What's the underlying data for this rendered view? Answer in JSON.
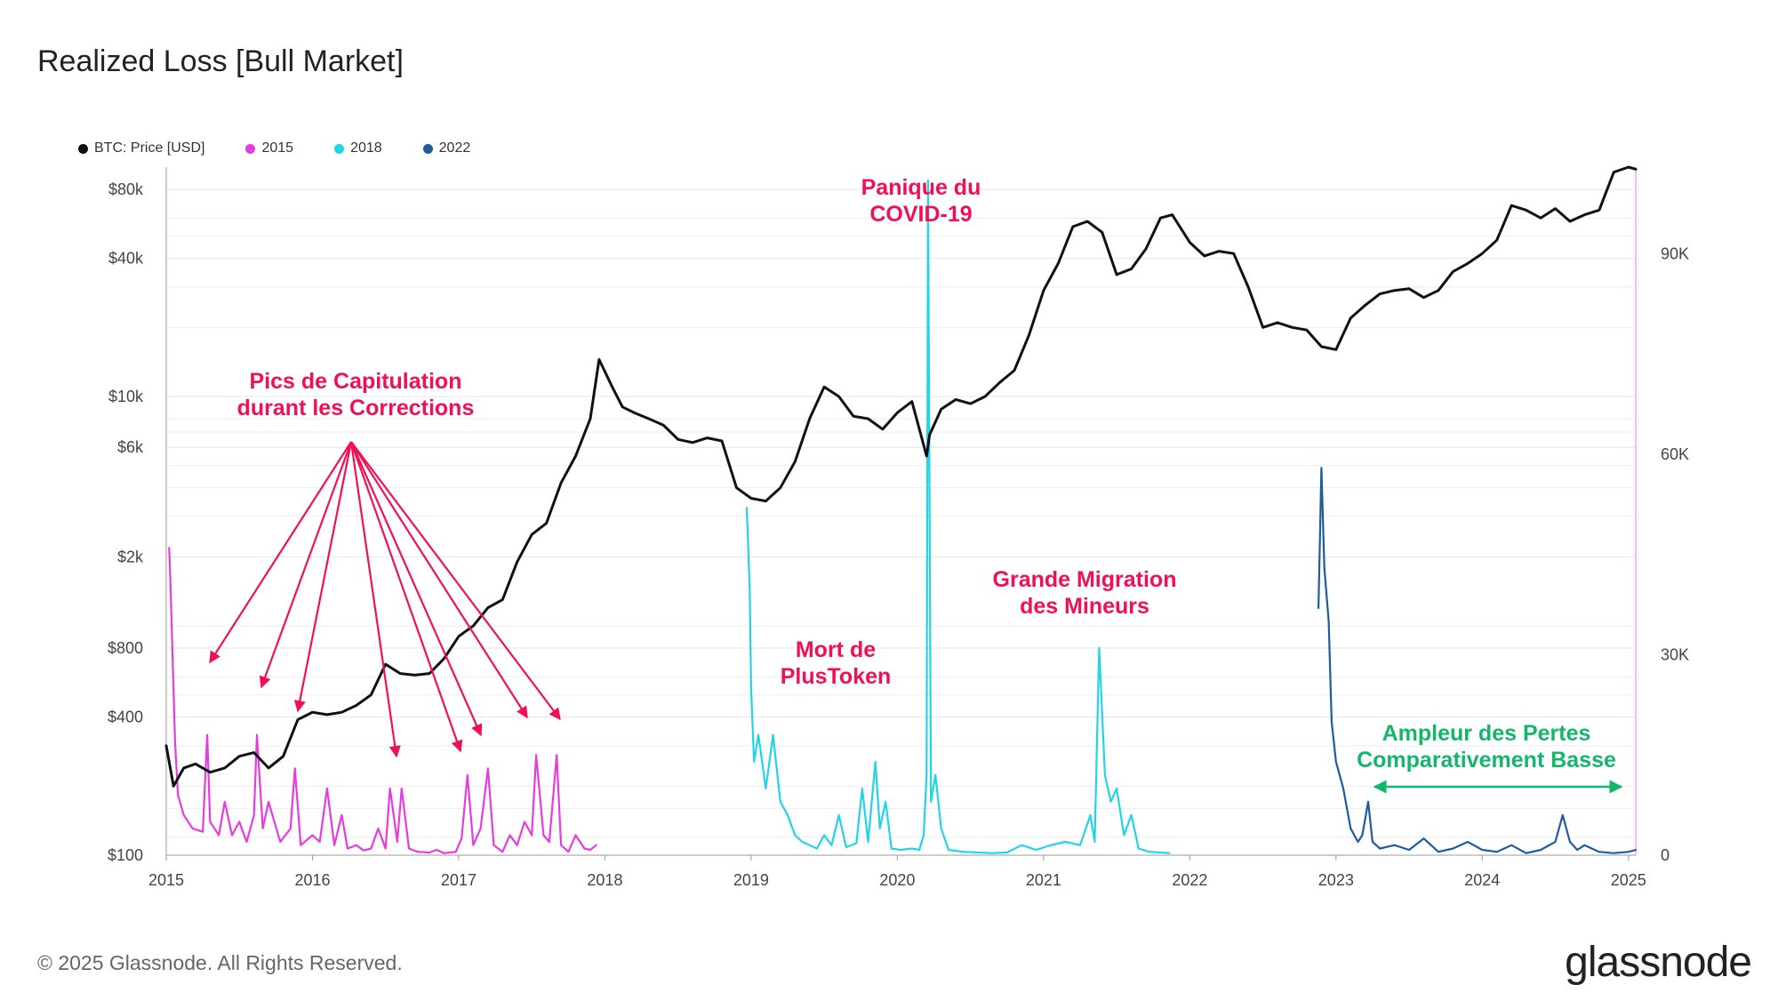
{
  "title": "Realized Loss [Bull Market]",
  "footer": {
    "copyright": "© 2025 Glassnode. All Rights Reserved.",
    "brand": "glassnode"
  },
  "colors": {
    "price": "#111111",
    "s2015": "#e63cdd",
    "s2018": "#23d3e6",
    "s2022": "#1f5c99",
    "annotation": "#f0105a",
    "annotation_green": "#12b76a",
    "right_axis": "#f5a6ef"
  },
  "legend": [
    {
      "label": "BTC: Price [USD]",
      "color": "#111111"
    },
    {
      "label": "2015",
      "color": "#e63cdd"
    },
    {
      "label": "2018",
      "color": "#23d3e6"
    },
    {
      "label": "2022",
      "color": "#1f5c99"
    }
  ],
  "annotations": {
    "capitulation": [
      "Pics de Capitulation",
      "durant les Corrections"
    ],
    "covid": [
      "Panique du",
      "COVID-19"
    ],
    "plustoken": [
      "Mort de",
      "PlusToken"
    ],
    "miners": [
      "Grande Migration",
      "des Mineurs"
    ],
    "ampleur": [
      "Ampleur des Pertes",
      "Comparativement Basse"
    ]
  },
  "chart_data": {
    "type": "line",
    "title": "Realized Loss [Bull Market]",
    "x_ticks": [
      "2015",
      "2016",
      "2017",
      "2018",
      "2019",
      "2020",
      "2021",
      "2022",
      "2023",
      "2024",
      "2025"
    ],
    "y_left_ticks": [
      "$100",
      "$400",
      "$800",
      "$2k",
      "$6k",
      "$10k",
      "$40k",
      "$80k"
    ],
    "y_left_scale": "log",
    "y_left_range": [
      100,
      100000
    ],
    "y_right_ticks": [
      "0",
      "30K",
      "60K",
      "90K"
    ],
    "y_right_range": [
      0,
      103000
    ],
    "series": [
      {
        "name": "BTC: Price [USD]",
        "axis": "left",
        "x": [
          2015.0,
          2015.05,
          2015.12,
          2015.2,
          2015.3,
          2015.4,
          2015.5,
          2015.6,
          2015.7,
          2015.8,
          2015.9,
          2016.0,
          2016.1,
          2016.2,
          2016.3,
          2016.4,
          2016.5,
          2016.6,
          2016.7,
          2016.8,
          2016.9,
          2017.0,
          2017.1,
          2017.2,
          2017.3,
          2017.4,
          2017.5,
          2017.6,
          2017.7,
          2017.8,
          2017.9,
          2017.96,
          2018.05,
          2018.12,
          2018.2,
          2018.3,
          2018.4,
          2018.5,
          2018.6,
          2018.7,
          2018.8,
          2018.9,
          2019.0,
          2019.1,
          2019.2,
          2019.3,
          2019.4,
          2019.5,
          2019.6,
          2019.7,
          2019.8,
          2019.9,
          2020.0,
          2020.1,
          2020.2,
          2020.22,
          2020.3,
          2020.4,
          2020.5,
          2020.6,
          2020.7,
          2020.8,
          2020.9,
          2021.0,
          2021.1,
          2021.2,
          2021.3,
          2021.4,
          2021.5,
          2021.6,
          2021.7,
          2021.8,
          2021.88,
          2022.0,
          2022.1,
          2022.2,
          2022.3,
          2022.4,
          2022.5,
          2022.6,
          2022.7,
          2022.8,
          2022.9,
          2023.0,
          2023.1,
          2023.2,
          2023.3,
          2023.4,
          2023.5,
          2023.6,
          2023.7,
          2023.8,
          2023.9,
          2024.0,
          2024.1,
          2024.2,
          2024.3,
          2024.4,
          2024.5,
          2024.6,
          2024.7,
          2024.8,
          2024.9,
          2025.0,
          2025.05
        ],
        "values": [
          300,
          200,
          240,
          250,
          230,
          240,
          270,
          280,
          240,
          270,
          390,
          420,
          410,
          420,
          450,
          500,
          680,
          620,
          610,
          620,
          720,
          900,
          1000,
          1200,
          1300,
          1900,
          2500,
          2800,
          4200,
          5500,
          8000,
          14500,
          11000,
          9000,
          8500,
          8000,
          7500,
          6500,
          6300,
          6600,
          6400,
          4000,
          3600,
          3500,
          4000,
          5200,
          8000,
          11000,
          10000,
          8200,
          8000,
          7200,
          8500,
          9500,
          5500,
          6800,
          8800,
          9700,
          9300,
          10000,
          11500,
          13000,
          18500,
          29000,
          38000,
          55000,
          58000,
          52000,
          34000,
          36000,
          44000,
          60000,
          62000,
          47000,
          41000,
          43000,
          42000,
          30000,
          20000,
          21000,
          20000,
          19500,
          16500,
          16000,
          22000,
          25000,
          28000,
          29000,
          29500,
          27000,
          29000,
          35000,
          38000,
          42000,
          48000,
          68000,
          65000,
          60000,
          66000,
          58000,
          62000,
          65000,
          95000,
          100000,
          98000
        ]
      },
      {
        "name": "2015",
        "axis": "right",
        "x": [
          2015.02,
          2015.03,
          2015.06,
          2015.08,
          2015.12,
          2015.18,
          2015.25,
          2015.28,
          2015.3,
          2015.36,
          2015.4,
          2015.45,
          2015.5,
          2015.55,
          2015.6,
          2015.62,
          2015.66,
          2015.7,
          2015.78,
          2015.85,
          2015.88,
          2015.92,
          2016.0,
          2016.05,
          2016.1,
          2016.15,
          2016.2,
          2016.24,
          2016.3,
          2016.35,
          2016.4,
          2016.45,
          2016.5,
          2016.53,
          2016.58,
          2016.61,
          2016.66,
          2016.72,
          2016.8,
          2016.85,
          2016.9,
          2016.98,
          2017.02,
          2017.06,
          2017.1,
          2017.15,
          2017.2,
          2017.24,
          2017.3,
          2017.35,
          2017.4,
          2017.45,
          2017.5,
          2017.53,
          2017.58,
          2017.62,
          2017.67,
          2017.7,
          2017.75,
          2017.8,
          2017.86,
          2017.9,
          2017.94
        ],
        "values": [
          46000,
          40000,
          17000,
          9000,
          6000,
          4000,
          3500,
          18000,
          5000,
          3000,
          8000,
          3000,
          5000,
          2000,
          6000,
          18000,
          4000,
          8000,
          2000,
          4000,
          13000,
          1500,
          3000,
          2000,
          10000,
          1500,
          6000,
          1000,
          1500,
          700,
          1000,
          4000,
          1000,
          10000,
          2000,
          10000,
          1000,
          500,
          400,
          800,
          300,
          500,
          2500,
          12000,
          1500,
          4000,
          13000,
          1500,
          500,
          3000,
          1500,
          5000,
          3000,
          15000,
          3000,
          2000,
          15000,
          1500,
          500,
          3000,
          1000,
          800,
          1500
        ]
      },
      {
        "name": "2018",
        "axis": "right",
        "x": [
          2018.97,
          2018.99,
          2019.0,
          2019.02,
          2019.05,
          2019.1,
          2019.15,
          2019.2,
          2019.25,
          2019.3,
          2019.35,
          2019.4,
          2019.45,
          2019.5,
          2019.55,
          2019.6,
          2019.65,
          2019.72,
          2019.76,
          2019.8,
          2019.85,
          2019.88,
          2019.92,
          2019.96,
          2020.02,
          2020.1,
          2020.15,
          2020.18,
          2020.2,
          2020.21,
          2020.23,
          2020.26,
          2020.3,
          2020.35,
          2020.45,
          2020.55,
          2020.65,
          2020.75,
          2020.85,
          2020.95,
          2021.05,
          2021.15,
          2021.25,
          2021.32,
          2021.35,
          2021.38,
          2021.42,
          2021.46,
          2021.5,
          2021.55,
          2021.6,
          2021.65,
          2021.72,
          2021.8,
          2021.86
        ],
        "values": [
          52000,
          40000,
          25000,
          14000,
          18000,
          10000,
          18000,
          8000,
          6000,
          3000,
          2000,
          1500,
          1000,
          3000,
          1500,
          6000,
          1200,
          1800,
          10000,
          2000,
          14000,
          4000,
          8000,
          1000,
          800,
          1000,
          800,
          3000,
          12000,
          101000,
          8000,
          12000,
          4000,
          800,
          500,
          400,
          300,
          400,
          1500,
          800,
          1500,
          2000,
          1500,
          6000,
          2000,
          31000,
          12000,
          8000,
          10000,
          3000,
          6000,
          1000,
          500,
          400,
          300
        ]
      },
      {
        "name": "2022",
        "axis": "right",
        "x": [
          2022.88,
          2022.9,
          2022.92,
          2022.95,
          2022.97,
          2023.0,
          2023.05,
          2023.1,
          2023.15,
          2023.18,
          2023.22,
          2023.25,
          2023.3,
          2023.4,
          2023.5,
          2023.6,
          2023.7,
          2023.8,
          2023.9,
          2024.0,
          2024.1,
          2024.2,
          2024.3,
          2024.4,
          2024.5,
          2024.55,
          2024.6,
          2024.65,
          2024.7,
          2024.8,
          2024.9,
          2025.0,
          2025.05
        ],
        "values": [
          37000,
          58000,
          43000,
          35000,
          20000,
          14000,
          10000,
          4000,
          2000,
          3000,
          8000,
          2000,
          1000,
          1500,
          800,
          2500,
          500,
          1000,
          2000,
          800,
          500,
          1500,
          300,
          800,
          2000,
          6000,
          2000,
          800,
          1500,
          500,
          300,
          500,
          800
        ]
      }
    ]
  }
}
